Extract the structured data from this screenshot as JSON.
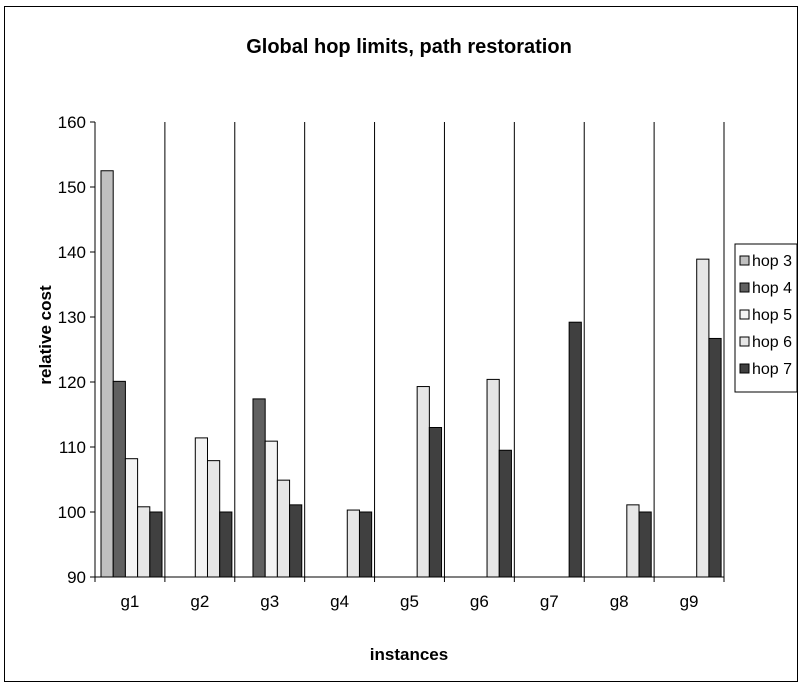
{
  "chart_data": {
    "type": "bar",
    "title": "Global hop limits, path restoration",
    "xlabel": "instances",
    "ylabel": "relative cost",
    "ylim": [
      90,
      160
    ],
    "yticks": [
      90,
      100,
      110,
      120,
      130,
      140,
      150,
      160
    ],
    "categories": [
      "g1",
      "g2",
      "g3",
      "g4",
      "g5",
      "g6",
      "g7",
      "g8",
      "g9"
    ],
    "grid": "vertical separators between categories",
    "legend_position": "right",
    "series": [
      {
        "name": "hop 3",
        "color": "#c0c0c0",
        "values": [
          152.5,
          null,
          null,
          null,
          null,
          null,
          null,
          null,
          null
        ]
      },
      {
        "name": "hop 4",
        "color": "#606060",
        "values": [
          120.1,
          null,
          117.4,
          null,
          null,
          null,
          null,
          null,
          null
        ]
      },
      {
        "name": "hop 5",
        "color": "#f4f4f4",
        "values": [
          108.2,
          111.4,
          110.9,
          null,
          null,
          null,
          null,
          null,
          null
        ]
      },
      {
        "name": "hop 6",
        "color": "#e6e6e6",
        "values": [
          100.8,
          107.9,
          104.9,
          100.3,
          119.3,
          120.4,
          null,
          101.1,
          138.9
        ]
      },
      {
        "name": "hop 7",
        "color": "#404040",
        "values": [
          100.0,
          100.0,
          101.1,
          100.0,
          113.0,
          109.5,
          129.2,
          100.0,
          126.7
        ]
      }
    ]
  }
}
